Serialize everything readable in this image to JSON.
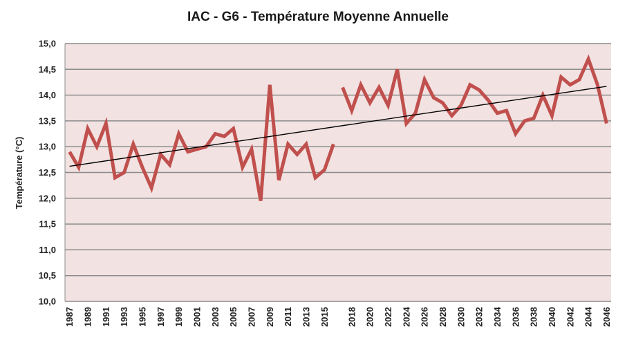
{
  "chart_data": {
    "type": "line",
    "title": "IAC - G6 - Température Moyenne Annuelle",
    "xlabel": "",
    "ylabel": "Température (°C)",
    "ylim": [
      10.0,
      15.0
    ],
    "y_ticks": [
      "10,0",
      "10,5",
      "11,0",
      "11,5",
      "12,0",
      "12,5",
      "13,0",
      "13,5",
      "14,0",
      "14,5",
      "15,0"
    ],
    "x_tick_labels": [
      "1987",
      "1989",
      "1991",
      "1993",
      "1995",
      "1997",
      "1999",
      "2001",
      "2003",
      "2005",
      "2007",
      "2009",
      "2011",
      "2013",
      "2015",
      "2018",
      "2020",
      "2022",
      "2024",
      "2026",
      "2028",
      "2030",
      "2032",
      "2034",
      "2036",
      "2038",
      "2040",
      "2042",
      "2044",
      "2046"
    ],
    "grid": true,
    "legend": "none",
    "colors": {
      "series": "#c0504d",
      "trend": "#000000",
      "plot_bg": "#f2e2e2",
      "grid": "#8c8c8c"
    },
    "series": [
      {
        "segments": [
          {
            "x": [
              1987,
              1988,
              1989,
              1990,
              1991,
              1992,
              1993,
              1994,
              1995,
              1996,
              1997,
              1998,
              1999,
              2000,
              2001,
              2002,
              2003,
              2004,
              2005,
              2006,
              2007,
              2008,
              2009,
              2010,
              2011,
              2012,
              2013,
              2014,
              2015,
              2016
            ],
            "values": [
              12.9,
              12.6,
              13.35,
              13.0,
              13.45,
              12.4,
              12.5,
              13.05,
              12.6,
              12.2,
              12.85,
              12.65,
              13.25,
              12.9,
              12.95,
              13.0,
              13.25,
              13.2,
              13.35,
              12.6,
              12.95,
              11.95,
              14.2,
              12.35,
              13.05,
              12.85,
              13.05,
              12.4,
              12.55,
              13.05
            ]
          },
          {
            "x": [
              2017,
              2018,
              2019,
              2020,
              2021,
              2022,
              2023,
              2024,
              2025,
              2026,
              2027,
              2028,
              2029,
              2030,
              2031,
              2032,
              2033,
              2034,
              2035,
              2036,
              2037,
              2038,
              2039,
              2040,
              2041,
              2042,
              2043,
              2044,
              2045,
              2046
            ],
            "values": [
              14.15,
              13.7,
              14.2,
              13.85,
              14.15,
              13.8,
              14.5,
              13.45,
              13.65,
              14.3,
              13.95,
              13.85,
              13.6,
              13.8,
              14.2,
              14.1,
              13.9,
              13.65,
              13.7,
              13.25,
              13.5,
              13.55,
              14.0,
              13.6,
              14.35,
              14.2,
              14.3,
              14.7,
              14.2,
              13.45
            ]
          }
        ]
      }
    ],
    "trendline": {
      "x": [
        1987,
        2046
      ],
      "values": [
        12.62,
        14.17
      ]
    }
  }
}
